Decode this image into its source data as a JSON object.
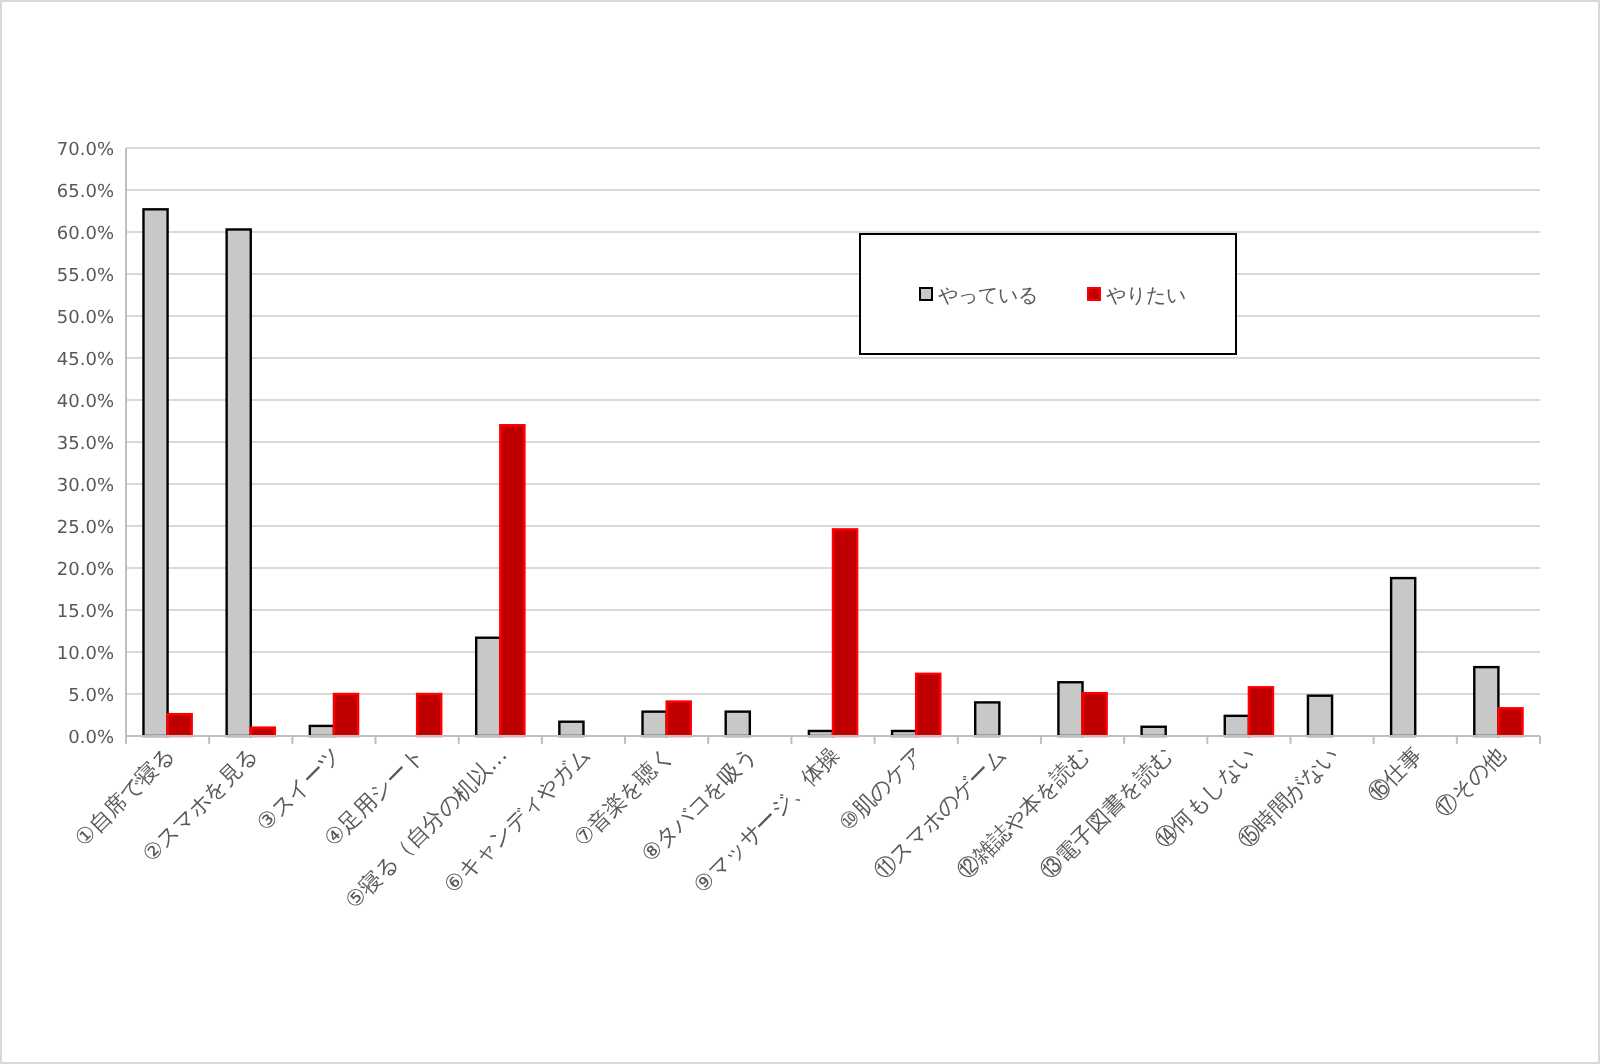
{
  "chart_data": {
    "type": "bar",
    "categories": [
      "①自席で寝る",
      "②スマホを見る",
      "③スイーツ",
      "④足用シート",
      "⑤寝る（自分の机以…",
      "⑥キャンディやガム",
      "⑦音楽を聴く",
      "⑧タバコを吸う",
      "⑨マッサージ、体操",
      "⑩肌のケア",
      "⑪スマホのゲーム",
      "⑫雑誌や本を読む",
      "⑬電子図書を読む",
      "⑭何もしない",
      "⑮時間がない",
      "⑯仕事",
      "⑰その他"
    ],
    "series": [
      {
        "name": "やっている",
        "color": "#c8c8c8",
        "values": [
          62.7,
          60.3,
          1.2,
          0,
          11.7,
          1.7,
          2.9,
          2.9,
          0.6,
          0.6,
          4.0,
          6.4,
          1.1,
          2.4,
          4.8,
          18.8,
          8.2
        ]
      },
      {
        "name": "やりたい",
        "color": "#c00000",
        "values": [
          2.6,
          1.0,
          5.0,
          5.0,
          37.0,
          0,
          4.1,
          0,
          24.6,
          7.4,
          0,
          5.1,
          0,
          5.8,
          0,
          0,
          3.3
        ]
      }
    ],
    "ylim": [
      0,
      70
    ],
    "yticks": [
      {
        "value": 0,
        "label": "0.0%"
      },
      {
        "value": 5,
        "label": "5.0%"
      },
      {
        "value": 10,
        "label": "10.0%"
      },
      {
        "value": 15,
        "label": "15.0%"
      },
      {
        "value": 20,
        "label": "20.0%"
      },
      {
        "value": 25,
        "label": "25.0%"
      },
      {
        "value": 30,
        "label": "30.0%"
      },
      {
        "value": 35,
        "label": "35.0%"
      },
      {
        "value": 40,
        "label": "40.0%"
      },
      {
        "value": 45,
        "label": "45.0%"
      },
      {
        "value": 50,
        "label": "50.0%"
      },
      {
        "value": 55,
        "label": "55.0%"
      },
      {
        "value": 60,
        "label": "60.0%"
      },
      {
        "value": 65,
        "label": "65.0%"
      },
      {
        "value": 70,
        "label": "70.0%"
      }
    ],
    "grid": "y",
    "legend": "top"
  }
}
